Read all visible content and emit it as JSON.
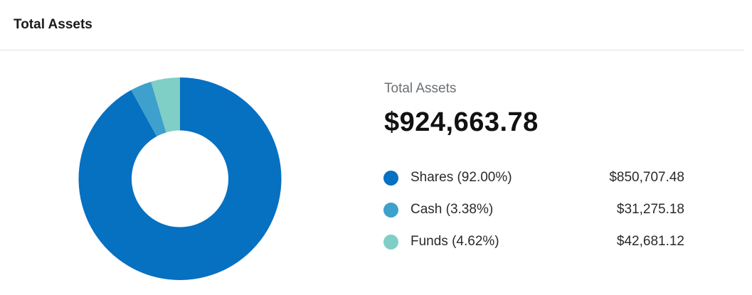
{
  "header": {
    "title": "Total Assets"
  },
  "summary": {
    "label": "Total Assets",
    "value": "$924,663.78"
  },
  "legend": [
    {
      "label": "Shares (92.00%)",
      "amount": "$850,707.48",
      "color": "#0670c1"
    },
    {
      "label": "Cash (3.38%)",
      "amount": "$31,275.18",
      "color": "#3ea0cc"
    },
    {
      "label": "Funds (4.62%)",
      "amount": "$42,681.12",
      "color": "#7fcfc6"
    }
  ],
  "chart_data": {
    "type": "pie",
    "categories": [
      "Shares",
      "Cash",
      "Funds"
    ],
    "values": [
      850707.48,
      31275.18,
      42681.12
    ],
    "percentages": [
      92.0,
      3.38,
      4.62
    ],
    "colors": [
      "#0670c1",
      "#3ea0cc",
      "#7fcfc6"
    ],
    "total": 924663.78,
    "legend": "right"
  }
}
